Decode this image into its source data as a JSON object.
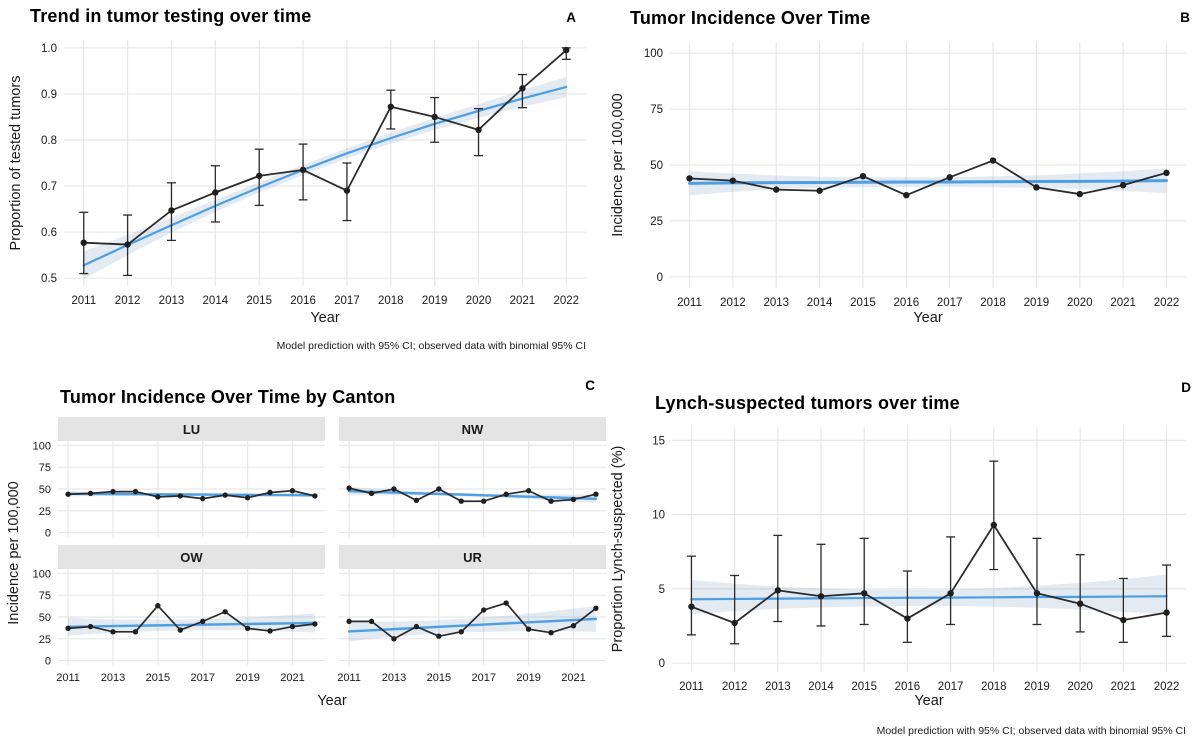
{
  "colors": {
    "model_line": "#4d9ee3",
    "ribbon": "rgba(100,140,185,0.18)",
    "observed": "#2b2b2b",
    "point": "#1f1f1f",
    "grid": "#e8e8e8",
    "strip_bg": "#e4e4e4",
    "text": "#1a1a1a"
  },
  "chart_data": [
    {
      "panel": "A",
      "type": "line",
      "title": "Trend in tumor testing over time",
      "xlabel": "Year",
      "ylabel": "Proportion of tested tumors",
      "caption": "Model prediction with 95% CI; observed data with binomial 95% CI",
      "x": [
        2011,
        2012,
        2013,
        2014,
        2015,
        2016,
        2017,
        2018,
        2019,
        2020,
        2021,
        2022
      ],
      "xticks": {
        "vals": [
          2011,
          2012,
          2013,
          2014,
          2015,
          2016,
          2017,
          2018,
          2019,
          2020,
          2021,
          2022
        ],
        "labels": [
          "2011",
          "2012",
          "2013",
          "2014",
          "2015",
          "2016",
          "2017",
          "2018",
          "2019",
          "2020",
          "2021",
          "2022"
        ]
      },
      "yticks": {
        "vals": [
          0.5,
          0.6,
          0.7,
          0.8,
          0.9,
          1.0
        ],
        "labels": [
          "0.5",
          "0.6",
          "0.7",
          "0.8",
          "0.9",
          "1.0"
        ]
      },
      "ylim": [
        0.483,
        1.017
      ],
      "observed": [
        0.577,
        0.573,
        0.647,
        0.686,
        0.722,
        0.735,
        0.69,
        0.872,
        0.85,
        0.822,
        0.912,
        0.995
      ],
      "ci_low": [
        0.51,
        0.506,
        0.582,
        0.622,
        0.658,
        0.67,
        0.625,
        0.824,
        0.795,
        0.766,
        0.87,
        0.975
      ],
      "ci_high": [
        0.643,
        0.637,
        0.707,
        0.744,
        0.78,
        0.791,
        0.75,
        0.908,
        0.892,
        0.868,
        0.942,
        1.0
      ],
      "model": [
        0.528,
        0.572,
        0.615,
        0.657,
        0.697,
        0.735,
        0.771,
        0.804,
        0.835,
        0.863,
        0.89,
        0.915
      ],
      "model_low": [
        0.498,
        0.55,
        0.599,
        0.644,
        0.686,
        0.724,
        0.76,
        0.792,
        0.822,
        0.848,
        0.872,
        0.893
      ],
      "model_high": [
        0.558,
        0.594,
        0.631,
        0.67,
        0.708,
        0.746,
        0.782,
        0.816,
        0.848,
        0.878,
        0.908,
        0.937
      ]
    },
    {
      "panel": "B",
      "type": "line",
      "title": "Tumor Incidence Over Time",
      "xlabel": "Year",
      "ylabel": "Incidence per 100,000",
      "x": [
        2011,
        2012,
        2013,
        2014,
        2015,
        2016,
        2017,
        2018,
        2019,
        2020,
        2021,
        2022
      ],
      "xticks": {
        "vals": [
          2011,
          2012,
          2013,
          2014,
          2015,
          2016,
          2017,
          2018,
          2019,
          2020,
          2021,
          2022
        ],
        "labels": [
          "2011",
          "2012",
          "2013",
          "2014",
          "2015",
          "2016",
          "2017",
          "2018",
          "2019",
          "2020",
          "2021",
          "2022"
        ]
      },
      "yticks": {
        "vals": [
          0,
          25,
          50,
          75,
          100
        ],
        "labels": [
          "0",
          "25",
          "50",
          "75",
          "100"
        ]
      },
      "ylim": [
        -5,
        105
      ],
      "observed": [
        44,
        43,
        39,
        38.5,
        45,
        36.5,
        44.5,
        52,
        40,
        37,
        41,
        46.5
      ],
      "model": [
        41.8,
        42.0,
        42.1,
        42.2,
        42.3,
        42.4,
        42.4,
        42.5,
        42.6,
        42.7,
        42.8,
        43.0
      ],
      "model_low": [
        36.5,
        38.0,
        39.2,
        39.8,
        40.1,
        40.2,
        40.2,
        40.0,
        39.7,
        39.2,
        38.4,
        37.4
      ],
      "model_high": [
        47.2,
        46.2,
        45.3,
        44.8,
        44.6,
        44.5,
        44.6,
        44.9,
        45.4,
        46.2,
        47.2,
        48.5
      ]
    },
    {
      "panel": "C",
      "type": "line",
      "title": "Tumor Incidence Over Time by Canton",
      "xlabel": "Year",
      "ylabel": "Incidence per 100,000",
      "x": [
        2011,
        2012,
        2013,
        2014,
        2015,
        2016,
        2017,
        2018,
        2019,
        2020,
        2021,
        2022
      ],
      "xticks": {
        "vals": [
          2011,
          2013,
          2015,
          2017,
          2019,
          2021
        ],
        "labels": [
          "2011",
          "2013",
          "2015",
          "2017",
          "2019",
          "2021"
        ]
      },
      "yticks": {
        "vals": [
          0,
          25,
          50,
          75,
          100
        ],
        "labels": [
          "0",
          "25",
          "50",
          "75",
          "100"
        ]
      },
      "ylim": [
        -5,
        105
      ],
      "facets": [
        {
          "label": "LU",
          "observed": [
            44,
            45,
            47,
            47,
            41,
            42,
            39,
            43,
            40,
            46,
            48,
            42
          ],
          "model": [
            44.5,
            44.3,
            44.2,
            44.0,
            43.9,
            43.7,
            43.6,
            43.4,
            43.3,
            43.1,
            43.0,
            42.8
          ],
          "model_low": [
            41.5,
            41.8,
            42.0,
            42.1,
            42.2,
            42.2,
            42.1,
            42.0,
            41.8,
            41.5,
            41.0,
            40.5
          ],
          "model_high": [
            47.5,
            46.8,
            46.4,
            45.9,
            45.6,
            45.2,
            45.1,
            44.8,
            44.8,
            44.7,
            45.0,
            45.1
          ]
        },
        {
          "label": "NW",
          "observed": [
            51,
            45,
            50,
            37,
            50,
            36,
            36,
            44,
            48,
            36,
            38,
            44
          ],
          "model": [
            47.5,
            46.7,
            45.9,
            45.1,
            44.3,
            43.6,
            42.8,
            42.0,
            41.2,
            40.4,
            39.6,
            38.8
          ],
          "model_low": [
            42.5,
            42.7,
            42.8,
            42.6,
            42.2,
            41.6,
            40.8,
            39.8,
            38.6,
            37.2,
            35.6,
            34.0
          ],
          "model_high": [
            52.5,
            50.7,
            49.0,
            47.6,
            46.4,
            45.6,
            44.8,
            44.2,
            43.8,
            43.6,
            43.6,
            43.6
          ]
        },
        {
          "label": "OW",
          "observed": [
            37,
            39,
            33,
            33,
            63,
            35,
            45,
            56,
            37,
            34,
            39,
            42
          ],
          "model": [
            38.8,
            39.2,
            39.6,
            40.0,
            40.4,
            40.8,
            41.2,
            41.6,
            42.0,
            42.4,
            42.8,
            43.2
          ],
          "model_low": [
            28.5,
            30.5,
            32.0,
            33.2,
            34.0,
            34.5,
            34.8,
            34.8,
            34.5,
            34.0,
            33.2,
            32.2
          ],
          "model_high": [
            49.1,
            47.9,
            47.2,
            46.8,
            46.8,
            47.1,
            47.6,
            48.4,
            49.5,
            50.8,
            52.4,
            54.2
          ]
        },
        {
          "label": "UR",
          "observed": [
            45,
            45,
            25,
            39,
            28,
            33,
            58,
            66,
            36,
            32,
            40,
            60
          ],
          "model": [
            33.5,
            34.8,
            36.1,
            37.4,
            38.7,
            40.0,
            41.3,
            42.6,
            43.9,
            45.2,
            46.5,
            47.8
          ],
          "model_low": [
            22.0,
            25.0,
            27.5,
            29.5,
            31.0,
            32.2,
            33.0,
            33.5,
            33.8,
            33.8,
            33.5,
            33.0
          ],
          "model_high": [
            45.0,
            44.6,
            44.7,
            45.3,
            46.4,
            47.8,
            49.6,
            51.7,
            54.0,
            56.6,
            59.5,
            62.6
          ]
        }
      ]
    },
    {
      "panel": "D",
      "type": "line",
      "title": "Lynch-suspected tumors over time",
      "xlabel": "Year",
      "ylabel": "Proportion Lynch-suspected (%)",
      "caption": "Model prediction with 95% CI; observed data with binomial 95% CI",
      "x": [
        2011,
        2012,
        2013,
        2014,
        2015,
        2016,
        2017,
        2018,
        2019,
        2020,
        2021,
        2022
      ],
      "xticks": {
        "vals": [
          2011,
          2012,
          2013,
          2014,
          2015,
          2016,
          2017,
          2018,
          2019,
          2020,
          2021,
          2022
        ],
        "labels": [
          "2011",
          "2012",
          "2013",
          "2014",
          "2015",
          "2016",
          "2017",
          "2018",
          "2019",
          "2020",
          "2021",
          "2022"
        ]
      },
      "yticks": {
        "vals": [
          0,
          5,
          10,
          15
        ],
        "labels": [
          "0",
          "5",
          "10",
          "15"
        ]
      },
      "ylim": [
        -0.6,
        15.9
      ],
      "observed": [
        3.8,
        2.7,
        4.9,
        4.5,
        4.7,
        3.0,
        4.7,
        9.3,
        4.7,
        4.0,
        2.9,
        3.4
      ],
      "ci_low": [
        1.9,
        1.3,
        2.8,
        2.5,
        2.6,
        1.4,
        2.6,
        6.3,
        2.6,
        2.1,
        1.4,
        1.8
      ],
      "ci_high": [
        7.2,
        5.9,
        8.6,
        8.0,
        8.4,
        6.2,
        8.5,
        13.6,
        8.4,
        7.3,
        5.7,
        6.6
      ],
      "model": [
        4.3,
        4.32,
        4.34,
        4.36,
        4.38,
        4.4,
        4.41,
        4.43,
        4.45,
        4.46,
        4.48,
        4.5
      ],
      "model_low": [
        3.3,
        3.5,
        3.65,
        3.75,
        3.82,
        3.85,
        3.85,
        3.8,
        3.72,
        3.6,
        3.45,
        3.3
      ],
      "model_high": [
        5.6,
        5.35,
        5.15,
        5.02,
        4.95,
        4.93,
        4.95,
        5.05,
        5.2,
        5.4,
        5.65,
        5.95
      ]
    }
  ]
}
